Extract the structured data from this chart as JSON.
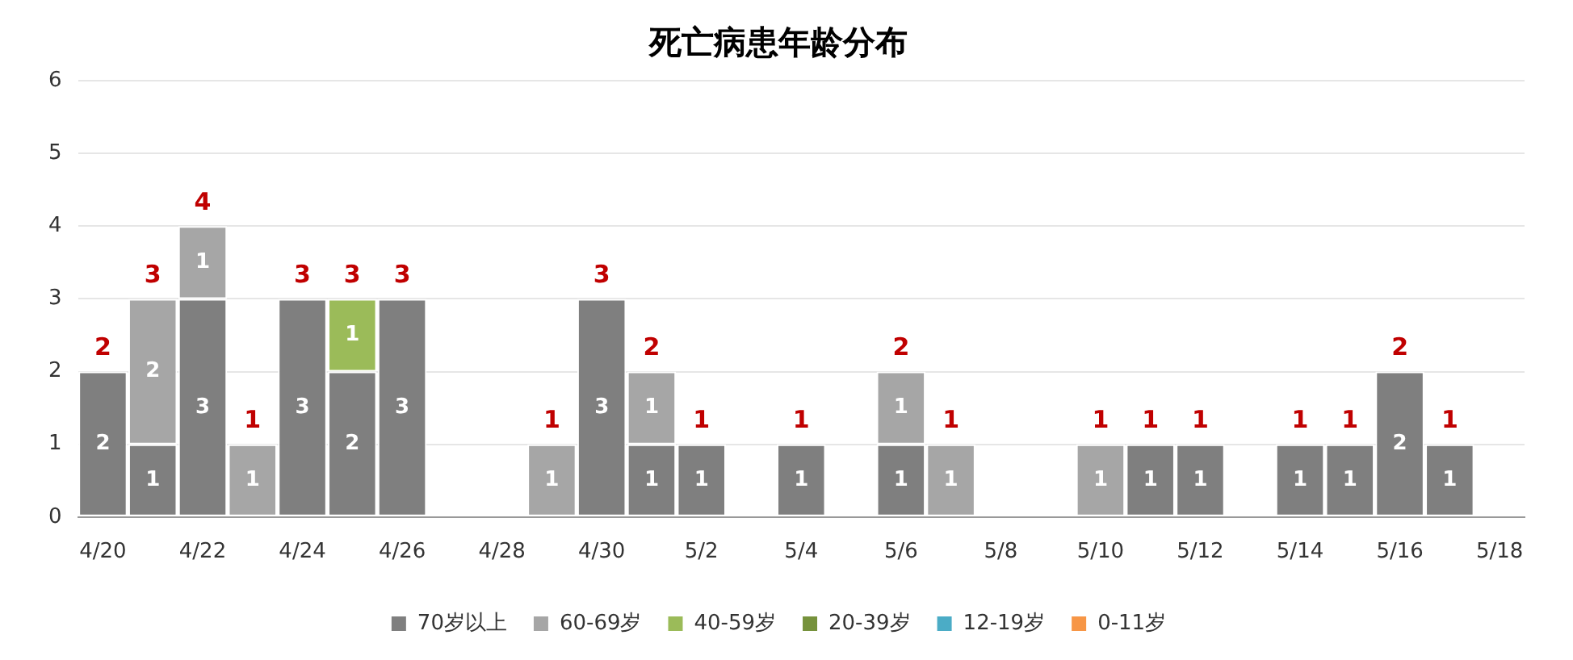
{
  "chart_data": {
    "type": "bar",
    "title": "死亡病患年龄分布",
    "categories": [
      "4/20",
      null,
      "4/22",
      null,
      "4/24",
      null,
      "4/26",
      null,
      "4/28",
      null,
      "4/30",
      null,
      "5/2",
      null,
      "5/4",
      null,
      "5/6",
      null,
      "5/8",
      null,
      "5/10",
      null,
      "5/12",
      null,
      "5/14",
      null,
      "5/16",
      null,
      "5/18"
    ],
    "series": [
      {
        "name": "70岁以上",
        "color": "#7f7f7f",
        "values": [
          2,
          1,
          3,
          null,
          3,
          2,
          3,
          null,
          null,
          null,
          3,
          1,
          1,
          null,
          1,
          null,
          1,
          null,
          null,
          null,
          null,
          1,
          1,
          null,
          1,
          1,
          2,
          1,
          null
        ]
      },
      {
        "name": "60-69岁",
        "color": "#a6a6a6",
        "values": [
          null,
          2,
          1,
          1,
          null,
          null,
          null,
          null,
          null,
          1,
          null,
          1,
          null,
          null,
          null,
          null,
          1,
          1,
          null,
          null,
          1,
          null,
          null,
          null,
          null,
          null,
          null,
          null,
          null
        ]
      },
      {
        "name": "40-59岁",
        "color": "#9bbb59",
        "values": [
          null,
          null,
          null,
          null,
          null,
          1,
          null,
          null,
          null,
          null,
          null,
          null,
          null,
          null,
          null,
          null,
          null,
          null,
          null,
          null,
          null,
          null,
          null,
          null,
          null,
          null,
          null,
          null,
          null
        ]
      },
      {
        "name": "20-39岁",
        "color": "#76923c",
        "values": [
          null,
          null,
          null,
          null,
          null,
          null,
          null,
          null,
          null,
          null,
          null,
          null,
          null,
          null,
          null,
          null,
          null,
          null,
          null,
          null,
          null,
          null,
          null,
          null,
          null,
          null,
          null,
          null,
          null
        ]
      },
      {
        "name": "12-19岁",
        "color": "#4bacc6",
        "values": [
          null,
          null,
          null,
          null,
          null,
          null,
          null,
          null,
          null,
          null,
          null,
          null,
          null,
          null,
          null,
          null,
          null,
          null,
          null,
          null,
          null,
          null,
          null,
          null,
          null,
          null,
          null,
          null,
          null
        ]
      },
      {
        "name": "0-11岁",
        "color": "#f79646",
        "values": [
          null,
          null,
          null,
          null,
          null,
          null,
          null,
          null,
          null,
          null,
          null,
          null,
          null,
          null,
          null,
          null,
          null,
          null,
          null,
          null,
          null,
          null,
          null,
          null,
          null,
          null,
          null,
          null,
          null
        ]
      }
    ],
    "totals": [
      "2",
      "3",
      "4",
      "1",
      "3",
      "3",
      "3",
      null,
      null,
      "1",
      "3",
      "2",
      "1",
      null,
      "1",
      null,
      "2",
      "1",
      null,
      null,
      "1",
      "1",
      "1",
      null,
      "1",
      "1",
      "2",
      "1",
      null
    ],
    "stacked": true,
    "data_labels": true,
    "ylim": [
      0,
      6
    ],
    "yticks": [
      0,
      1,
      2,
      3,
      4,
      5,
      6
    ],
    "grid": "y",
    "legend": "bottom"
  }
}
